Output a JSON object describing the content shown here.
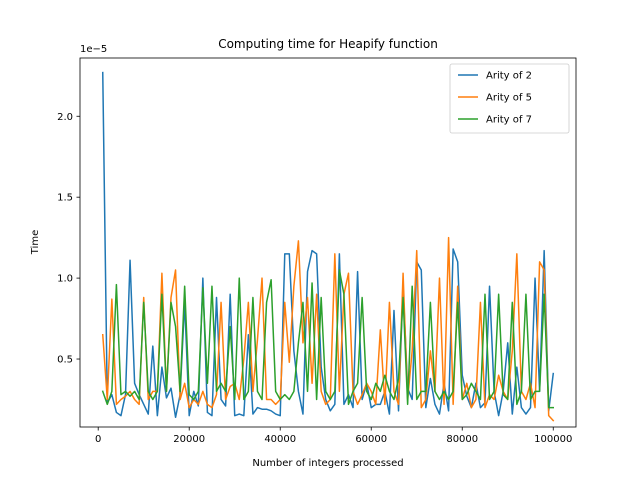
{
  "chart_data": {
    "type": "line",
    "title": "Computing time for Heapify function",
    "xlabel": "Number of integers processed",
    "ylabel": "Time",
    "y_offset_text": "1e−5",
    "xlim": [
      -4000,
      105000
    ],
    "ylim": [
      0.08,
      2.36
    ],
    "y_scale_note": "values in units of 1e-5",
    "grid": false,
    "legend_position": "top-right",
    "x_ticks": [
      0,
      20000,
      40000,
      60000,
      80000,
      100000
    ],
    "x_tick_labels": [
      "0",
      "20000",
      "40000",
      "60000",
      "80000",
      "100000"
    ],
    "y_ticks": [
      0.5,
      1.0,
      1.5,
      2.0
    ],
    "y_tick_labels": [
      "0.5",
      "1.0",
      "1.5",
      "2.0"
    ],
    "series": [
      {
        "name": "Arity of 2",
        "color": "#1f77b4",
        "x": [
          1000,
          2000,
          3000,
          4000,
          5000,
          6000,
          7000,
          8000,
          9000,
          10000,
          11000,
          12000,
          13000,
          14000,
          15000,
          16000,
          17000,
          18000,
          19000,
          20000,
          21000,
          22000,
          23000,
          24000,
          25000,
          26000,
          27000,
          28000,
          29000,
          30000,
          31000,
          32000,
          33000,
          34000,
          35000,
          36000,
          37000,
          38000,
          39000,
          40000,
          41000,
          42000,
          43000,
          44000,
          45000,
          46000,
          47000,
          48000,
          49000,
          50000,
          51000,
          52000,
          53000,
          54000,
          55000,
          56000,
          57000,
          58000,
          59000,
          60000,
          61000,
          62000,
          63000,
          64000,
          65000,
          66000,
          67000,
          68000,
          69000,
          70000,
          71000,
          72000,
          73000,
          74000,
          75000,
          76000,
          77000,
          78000,
          79000,
          80000,
          81000,
          82000,
          83000,
          84000,
          85000,
          86000,
          87000,
          88000,
          89000,
          90000,
          91000,
          92000,
          93000,
          94000,
          95000,
          96000,
          97000,
          98000,
          99000,
          100000
        ],
        "values": [
          2.27,
          0.23,
          0.28,
          0.17,
          0.15,
          0.28,
          1.11,
          0.35,
          0.28,
          0.22,
          0.16,
          0.58,
          0.15,
          0.45,
          0.26,
          0.32,
          0.14,
          0.28,
          0.85,
          0.15,
          0.3,
          0.21,
          1.0,
          0.17,
          0.15,
          0.88,
          0.25,
          0.21,
          0.9,
          0.15,
          0.16,
          0.15,
          0.65,
          0.16,
          0.2,
          0.19,
          0.19,
          0.18,
          0.16,
          0.15,
          1.15,
          1.15,
          0.55,
          0.3,
          0.16,
          1.04,
          1.17,
          1.15,
          0.45,
          0.25,
          0.18,
          0.22,
          1.15,
          0.22,
          0.28,
          0.2,
          1.04,
          0.25,
          0.35,
          0.2,
          0.22,
          0.22,
          0.3,
          0.16,
          0.8,
          0.18,
          0.95,
          0.32,
          0.25,
          1.1,
          1.05,
          0.2,
          0.38,
          0.22,
          0.16,
          0.35,
          0.18,
          1.18,
          1.1,
          0.4,
          0.27,
          0.2,
          0.35,
          0.2,
          0.23,
          0.95,
          0.3,
          0.15,
          0.3,
          0.6,
          0.16,
          0.45,
          0.2,
          0.16,
          0.2,
          1.0,
          0.3,
          1.17,
          0.18,
          0.41
        ]
      },
      {
        "name": "Arity of 5",
        "color": "#ff7f0e",
        "x": [
          1000,
          2000,
          3000,
          4000,
          5000,
          6000,
          7000,
          8000,
          9000,
          10000,
          11000,
          12000,
          13000,
          14000,
          15000,
          16000,
          17000,
          18000,
          19000,
          20000,
          21000,
          22000,
          23000,
          24000,
          25000,
          26000,
          27000,
          28000,
          29000,
          30000,
          31000,
          32000,
          33000,
          34000,
          35000,
          36000,
          37000,
          38000,
          39000,
          40000,
          41000,
          42000,
          43000,
          44000,
          45000,
          46000,
          47000,
          48000,
          49000,
          50000,
          51000,
          52000,
          53000,
          54000,
          55000,
          56000,
          57000,
          58000,
          59000,
          60000,
          61000,
          62000,
          63000,
          64000,
          65000,
          66000,
          67000,
          68000,
          69000,
          70000,
          71000,
          72000,
          73000,
          74000,
          75000,
          76000,
          77000,
          78000,
          79000,
          80000,
          81000,
          82000,
          83000,
          84000,
          85000,
          86000,
          87000,
          88000,
          89000,
          90000,
          91000,
          92000,
          93000,
          94000,
          95000,
          96000,
          97000,
          98000,
          99000,
          100000
        ],
        "values": [
          0.65,
          0.25,
          0.87,
          0.22,
          0.25,
          0.27,
          0.3,
          0.25,
          0.22,
          0.88,
          0.25,
          0.3,
          0.3,
          1.03,
          0.3,
          0.88,
          1.05,
          0.25,
          0.35,
          0.2,
          0.25,
          0.22,
          0.3,
          0.22,
          0.2,
          0.28,
          0.85,
          0.25,
          0.33,
          0.35,
          0.25,
          0.5,
          0.85,
          0.3,
          0.62,
          1.0,
          0.25,
          0.25,
          0.22,
          0.25,
          0.85,
          0.48,
          0.95,
          1.23,
          0.6,
          0.88,
          0.35,
          0.9,
          0.3,
          0.22,
          0.25,
          1.15,
          0.3,
          0.9,
          1.03,
          0.3,
          0.22,
          0.28,
          0.35,
          0.3,
          0.22,
          0.68,
          0.22,
          0.85,
          0.3,
          0.22,
          1.03,
          0.25,
          0.55,
          1.17,
          0.2,
          0.25,
          0.55,
          0.3,
          1.0,
          0.22,
          1.25,
          0.22,
          0.95,
          0.25,
          0.35,
          0.2,
          0.25,
          0.85,
          0.2,
          0.28,
          0.25,
          0.4,
          0.3,
          0.25,
          0.55,
          1.15,
          0.3,
          0.25,
          0.35,
          0.2,
          1.1,
          1.05,
          0.15,
          0.12
        ]
      },
      {
        "name": "Arity of 7",
        "color": "#2ca02c",
        "x": [
          1000,
          2000,
          3000,
          4000,
          5000,
          6000,
          7000,
          8000,
          9000,
          10000,
          11000,
          12000,
          13000,
          14000,
          15000,
          16000,
          17000,
          18000,
          19000,
          20000,
          21000,
          22000,
          23000,
          24000,
          25000,
          26000,
          27000,
          28000,
          29000,
          30000,
          31000,
          32000,
          33000,
          34000,
          35000,
          36000,
          37000,
          38000,
          39000,
          40000,
          41000,
          42000,
          43000,
          44000,
          45000,
          46000,
          47000,
          48000,
          49000,
          50000,
          51000,
          52000,
          53000,
          54000,
          55000,
          56000,
          57000,
          58000,
          59000,
          60000,
          61000,
          62000,
          63000,
          64000,
          65000,
          66000,
          67000,
          68000,
          69000,
          70000,
          71000,
          72000,
          73000,
          74000,
          75000,
          76000,
          77000,
          78000,
          79000,
          80000,
          81000,
          82000,
          83000,
          84000,
          85000,
          86000,
          87000,
          88000,
          89000,
          90000,
          91000,
          92000,
          93000,
          94000,
          95000,
          96000,
          97000,
          98000,
          99000,
          100000
        ],
        "values": [
          0.3,
          0.22,
          0.3,
          0.96,
          0.28,
          0.3,
          0.27,
          0.3,
          0.25,
          0.85,
          0.3,
          0.25,
          0.3,
          0.9,
          0.3,
          0.85,
          0.7,
          0.3,
          0.95,
          0.28,
          0.25,
          0.3,
          0.94,
          0.35,
          0.95,
          0.3,
          0.35,
          0.3,
          0.7,
          0.25,
          1.0,
          0.25,
          0.3,
          0.88,
          0.3,
          0.25,
          0.85,
          0.99,
          0.3,
          0.25,
          0.28,
          0.25,
          0.3,
          0.6,
          0.85,
          0.3,
          0.97,
          0.25,
          0.88,
          0.3,
          0.25,
          0.3,
          1.05,
          0.9,
          0.22,
          0.3,
          0.35,
          0.88,
          0.3,
          0.25,
          0.35,
          0.3,
          0.4,
          0.3,
          0.25,
          0.38,
          0.88,
          0.22,
          0.95,
          0.25,
          0.3,
          0.3,
          0.85,
          0.3,
          0.25,
          0.3,
          0.25,
          0.3,
          0.85,
          0.25,
          0.28,
          0.35,
          0.3,
          0.25,
          0.9,
          0.25,
          0.3,
          0.9,
          0.28,
          0.25,
          0.85,
          0.22,
          0.3,
          0.9,
          0.25,
          0.3,
          0.3,
          0.9,
          0.2,
          0.2
        ]
      }
    ]
  }
}
